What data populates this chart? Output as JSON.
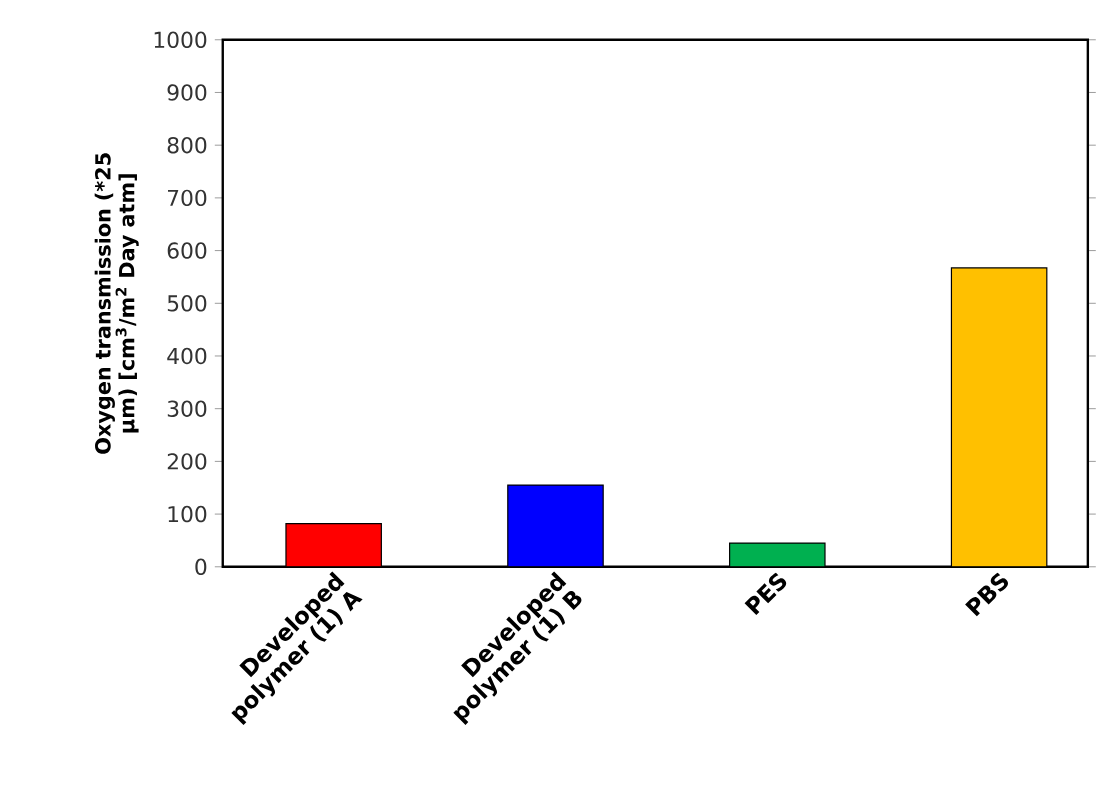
{
  "chart_data": {
    "type": "bar",
    "ylabel": "Oxygen transmission (*25 µm) [cm$^{3}$/m$^{2}$ Day atm]",
    "categories": [
      "Developed polymer (1) A",
      "Developed polymer (1) B",
      "PES",
      "PBS"
    ],
    "values": [
      82,
      155,
      45,
      567
    ],
    "colors": [
      "#ff0000",
      "#0000ff",
      "#00b050",
      "#ffc000"
    ],
    "ylim": [
      0,
      1000
    ],
    "yticks": [
      0,
      100,
      200,
      300,
      400,
      500,
      600,
      700,
      800,
      900,
      1000
    ]
  }
}
